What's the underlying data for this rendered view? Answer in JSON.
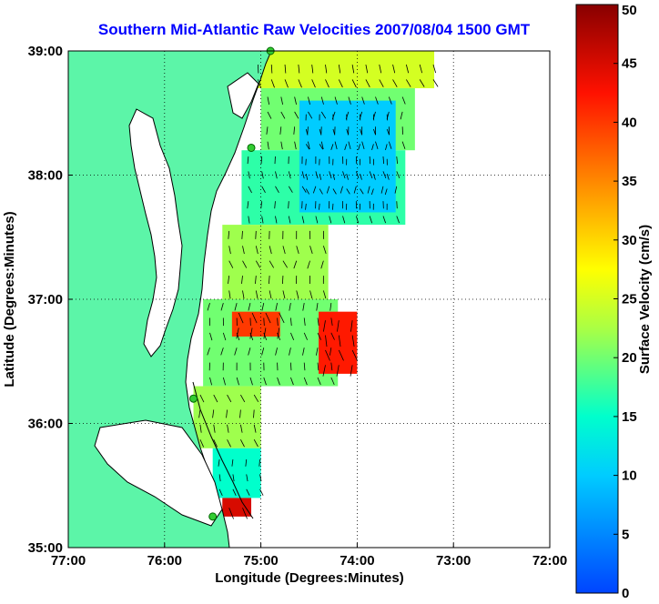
{
  "chart_data": {
    "type": "heatmap",
    "title": "Southern Mid-Atlantic Raw Velocities 2007/08/04 1500 GMT",
    "xlabel": "Longitude (Degrees:Minutes)",
    "ylabel": "Latitude (Degrees:Minutes)",
    "xlim": [
      -77,
      -72
    ],
    "ylim": [
      35,
      39
    ],
    "x_ticks": [
      {
        "value": -77,
        "label": "77:00"
      },
      {
        "value": -76,
        "label": "76:00"
      },
      {
        "value": -75,
        "label": "75:00"
      },
      {
        "value": -74,
        "label": "74:00"
      },
      {
        "value": -73,
        "label": "73:00"
      },
      {
        "value": -72,
        "label": "72:00"
      }
    ],
    "y_ticks": [
      {
        "value": 35,
        "label": "35:00"
      },
      {
        "value": 36,
        "label": "36:00"
      },
      {
        "value": 37,
        "label": "37:00"
      },
      {
        "value": 38,
        "label": "38:00"
      },
      {
        "value": 39,
        "label": "39:00"
      }
    ],
    "grid": true,
    "colorbar": {
      "label": "Surface Velocity (cm/s)",
      "min": 0,
      "max": 50,
      "ticks": [
        0,
        5,
        10,
        15,
        20,
        25,
        30,
        35,
        40,
        45,
        50
      ],
      "colormap": "jet",
      "placement": "right"
    },
    "land_color": "#5cf5a8",
    "coast_color": "#000000",
    "station_color": "#33cc33",
    "stations": [
      {
        "lon": -74.9,
        "lat": 39.0
      },
      {
        "lon": -75.1,
        "lat": 38.22
      },
      {
        "lon": -75.7,
        "lat": 36.2
      },
      {
        "lon": -75.5,
        "lat": 35.25
      }
    ],
    "field_regions": [
      {
        "lon_min": -75.1,
        "lon_max": -73.2,
        "lat_min": 38.7,
        "lat_max": 39.0,
        "speed": 25
      },
      {
        "lon_min": -75.0,
        "lon_max": -73.4,
        "lat_min": 38.2,
        "lat_max": 38.7,
        "speed": 20
      },
      {
        "lon_min": -75.2,
        "lon_max": -73.5,
        "lat_min": 37.6,
        "lat_max": 38.2,
        "speed": 17
      },
      {
        "lon_min": -74.6,
        "lon_max": -73.6,
        "lat_min": 37.7,
        "lat_max": 38.6,
        "speed": 10
      },
      {
        "lon_min": -75.4,
        "lon_max": -74.3,
        "lat_min": 37.0,
        "lat_max": 37.6,
        "speed": 22
      },
      {
        "lon_min": -75.6,
        "lon_max": -74.2,
        "lat_min": 36.3,
        "lat_max": 37.0,
        "speed": 20
      },
      {
        "lon_min": -74.4,
        "lon_max": -74.0,
        "lat_min": 36.4,
        "lat_max": 36.9,
        "speed": 42
      },
      {
        "lon_min": -75.3,
        "lon_max": -74.8,
        "lat_min": 36.7,
        "lat_max": 36.9,
        "speed": 40
      },
      {
        "lon_min": -75.7,
        "lon_max": -75.0,
        "lat_min": 35.8,
        "lat_max": 36.3,
        "speed": 22
      },
      {
        "lon_min": -75.5,
        "lon_max": -75.0,
        "lat_min": 35.4,
        "lat_max": 35.8,
        "speed": 15
      },
      {
        "lon_min": -75.4,
        "lon_max": -75.1,
        "lat_min": 35.25,
        "lat_max": 35.4,
        "speed": 45
      }
    ]
  }
}
